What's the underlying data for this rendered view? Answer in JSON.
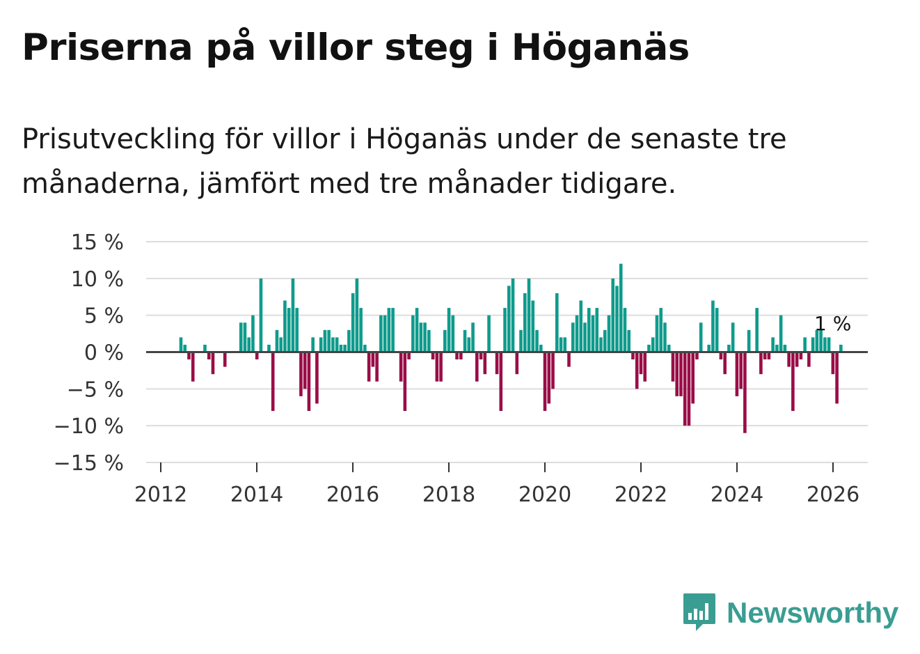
{
  "title": "Priserna på villor steg i Höganäs",
  "subtitle": "Prisutveckling för villor i Höganäs under de senaste tre månaderna, jämfört med tre månader tidigare.",
  "brand": {
    "name": "Newsworthy",
    "icon": "bar-chart-speech-icon",
    "color": "#3a9d92"
  },
  "colors": {
    "positive": "#0e9b8c",
    "negative": "#9a0d47",
    "zero_line": "#444444",
    "grid": "#dddddd"
  },
  "chart_data": {
    "type": "bar",
    "title": "Priserna på villor steg i Höganäs",
    "xlabel": "",
    "ylabel": "",
    "ylim": [
      -15,
      15
    ],
    "yticks": [
      15,
      10,
      5,
      0,
      -5,
      -10,
      -15
    ],
    "ytick_labels": [
      "15 %",
      "10 %",
      "5 %",
      "0 %",
      "−5 %",
      "−10 %",
      "−15 %"
    ],
    "xticks": [
      2012,
      2014,
      2016,
      2018,
      2020,
      2022,
      2024,
      2026
    ],
    "xtick_labels": [
      "2012",
      "2014",
      "2016",
      "2018",
      "2020",
      "2022",
      "2024",
      "2026"
    ],
    "xlim": [
      2012,
      2026.7
    ],
    "start": 2012.42,
    "step": 0.0833,
    "values": [
      2,
      1,
      -1,
      -4,
      0,
      0,
      1,
      -1,
      -3,
      0,
      0,
      -2,
      0,
      0,
      0,
      4,
      4,
      2,
      5,
      -1,
      10,
      0,
      1,
      -8,
      3,
      2,
      7,
      6,
      10,
      6,
      -6,
      -5,
      -8,
      2,
      -7,
      2,
      3,
      3,
      2,
      2,
      1,
      1,
      3,
      8,
      10,
      6,
      1,
      -4,
      -2,
      -4,
      5,
      5,
      6,
      6,
      0,
      -4,
      -8,
      -1,
      5,
      6,
      4,
      4,
      3,
      -1,
      -4,
      -4,
      3,
      6,
      5,
      -1,
      -1,
      3,
      2,
      4,
      -4,
      -1,
      -3,
      5,
      0,
      -3,
      -8,
      6,
      9,
      10,
      -3,
      3,
      8,
      10,
      7,
      3,
      1,
      -8,
      -7,
      -5,
      8,
      2,
      2,
      -2,
      4,
      5,
      7,
      4,
      6,
      5,
      6,
      2,
      3,
      5,
      10,
      9,
      12,
      6,
      3,
      -1,
      -5,
      -3,
      -4,
      1,
      2,
      5,
      6,
      4,
      1,
      -4,
      -6,
      -6,
      -10,
      -10,
      -7,
      -1,
      4,
      0,
      1,
      7,
      6,
      -1,
      -3,
      1,
      4,
      -6,
      -5,
      -11,
      3,
      0,
      6,
      -3,
      -1,
      -1,
      2,
      1,
      5,
      1,
      -2,
      -8,
      -2,
      -1,
      2,
      -2,
      2,
      3,
      3,
      2,
      2,
      -3,
      -7,
      1
    ],
    "annotation": {
      "label": "1 %",
      "x": 2026.0,
      "value": 1
    }
  }
}
